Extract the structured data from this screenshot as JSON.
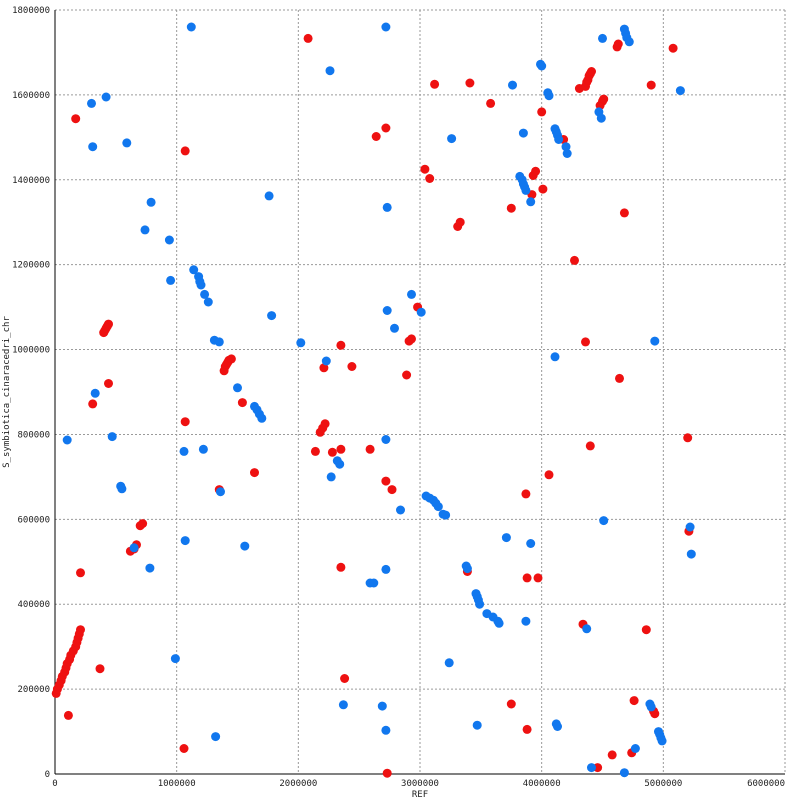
{
  "chart_data": {
    "type": "scatter",
    "title": "",
    "xlabel": "REF",
    "ylabel": "S_symbiotica_cinaracedri_chr",
    "xlim": [
      0,
      6000000
    ],
    "ylim": [
      0,
      1800000
    ],
    "x_ticks": [
      0,
      1000000,
      2000000,
      3000000,
      4000000,
      5000000,
      6000000
    ],
    "y_ticks": [
      0,
      200000,
      400000,
      600000,
      800000,
      1000000,
      1200000,
      1400000,
      1600000,
      1800000
    ],
    "grid": true,
    "legend": "none",
    "series": [
      {
        "color": "#ee1111",
        "points": [
          [
            10000,
            190000
          ],
          [
            20000,
            200000
          ],
          [
            35000,
            210000
          ],
          [
            50000,
            220000
          ],
          [
            60000,
            230000
          ],
          [
            80000,
            240000
          ],
          [
            90000,
            250000
          ],
          [
            100000,
            260000
          ],
          [
            120000,
            270000
          ],
          [
            130000,
            280000
          ],
          [
            150000,
            290000
          ],
          [
            170000,
            300000
          ],
          [
            180000,
            310000
          ],
          [
            190000,
            320000
          ],
          [
            200000,
            330000
          ],
          [
            210000,
            340000
          ],
          [
            110000,
            138000
          ],
          [
            370000,
            248000
          ],
          [
            210000,
            474000
          ],
          [
            310000,
            872000
          ],
          [
            440000,
            920000
          ],
          [
            170000,
            1544000
          ],
          [
            400000,
            1040000
          ],
          [
            410000,
            1045000
          ],
          [
            420000,
            1050000
          ],
          [
            430000,
            1055000
          ],
          [
            440000,
            1060000
          ],
          [
            620000,
            525000
          ],
          [
            650000,
            530000
          ],
          [
            670000,
            540000
          ],
          [
            700000,
            585000
          ],
          [
            720000,
            590000
          ],
          [
            1060000,
            60000
          ],
          [
            1070000,
            830000
          ],
          [
            1070000,
            1468000
          ],
          [
            1350000,
            670000
          ],
          [
            1390000,
            950000
          ],
          [
            1400000,
            960000
          ],
          [
            1410000,
            965000
          ],
          [
            1420000,
            970000
          ],
          [
            1430000,
            975000
          ],
          [
            1450000,
            978000
          ],
          [
            1540000,
            875000
          ],
          [
            1640000,
            710000
          ],
          [
            2080000,
            1733000
          ],
          [
            2140000,
            760000
          ],
          [
            2180000,
            805000
          ],
          [
            2200000,
            815000
          ],
          [
            2220000,
            825000
          ],
          [
            2210000,
            957000
          ],
          [
            2280000,
            758000
          ],
          [
            2350000,
            1010000
          ],
          [
            2350000,
            765000
          ],
          [
            2350000,
            487000
          ],
          [
            2380000,
            225000
          ],
          [
            2440000,
            960000
          ],
          [
            2590000,
            765000
          ],
          [
            2640000,
            1502000
          ],
          [
            2720000,
            1522000
          ],
          [
            2720000,
            690000
          ],
          [
            2770000,
            670000
          ],
          [
            2730000,
            2000
          ],
          [
            2890000,
            940000
          ],
          [
            2910000,
            1020000
          ],
          [
            2930000,
            1025000
          ],
          [
            2980000,
            1100000
          ],
          [
            3040000,
            1425000
          ],
          [
            3080000,
            1403000
          ],
          [
            3120000,
            1625000
          ],
          [
            3310000,
            1290000
          ],
          [
            3330000,
            1300000
          ],
          [
            3410000,
            1628000
          ],
          [
            3390000,
            477000
          ],
          [
            3580000,
            1580000
          ],
          [
            3750000,
            1333000
          ],
          [
            3750000,
            165000
          ],
          [
            3880000,
            105000
          ],
          [
            3870000,
            660000
          ],
          [
            3880000,
            462000
          ],
          [
            3920000,
            1365000
          ],
          [
            3930000,
            1410000
          ],
          [
            3950000,
            1420000
          ],
          [
            3970000,
            462000
          ],
          [
            4000000,
            1560000
          ],
          [
            4010000,
            1378000
          ],
          [
            4060000,
            705000
          ],
          [
            4180000,
            1495000
          ],
          [
            4270000,
            1210000
          ],
          [
            4310000,
            1615000
          ],
          [
            4360000,
            1620000
          ],
          [
            4370000,
            1630000
          ],
          [
            4380000,
            1635000
          ],
          [
            4390000,
            1645000
          ],
          [
            4400000,
            1650000
          ],
          [
            4410000,
            1655000
          ],
          [
            4360000,
            1018000
          ],
          [
            4400000,
            773000
          ],
          [
            4340000,
            353000
          ],
          [
            4460000,
            15000
          ],
          [
            4480000,
            1575000
          ],
          [
            4500000,
            1585000
          ],
          [
            4510000,
            1590000
          ],
          [
            4580000,
            45000
          ],
          [
            4620000,
            1713000
          ],
          [
            4630000,
            1720000
          ],
          [
            4640000,
            932000
          ],
          [
            4680000,
            1322000
          ],
          [
            4740000,
            50000
          ],
          [
            4760000,
            173000
          ],
          [
            4860000,
            340000
          ],
          [
            4920000,
            148000
          ],
          [
            4930000,
            142000
          ],
          [
            4900000,
            1623000
          ],
          [
            5080000,
            1710000
          ],
          [
            5200000,
            792000
          ],
          [
            5210000,
            572000
          ]
        ]
      },
      {
        "color": "#1177ee",
        "points": [
          [
            100000,
            787000
          ],
          [
            300000,
            1580000
          ],
          [
            310000,
            1478000
          ],
          [
            330000,
            897000
          ],
          [
            420000,
            1595000
          ],
          [
            470000,
            795000
          ],
          [
            540000,
            678000
          ],
          [
            550000,
            672000
          ],
          [
            590000,
            1487000
          ],
          [
            650000,
            533000
          ],
          [
            740000,
            1282000
          ],
          [
            780000,
            485000
          ],
          [
            790000,
            1347000
          ],
          [
            940000,
            1258000
          ],
          [
            950000,
            1163000
          ],
          [
            990000,
            272000
          ],
          [
            1060000,
            760000
          ],
          [
            1070000,
            550000
          ],
          [
            1120000,
            1760000
          ],
          [
            1140000,
            1188000
          ],
          [
            1180000,
            1172000
          ],
          [
            1190000,
            1160000
          ],
          [
            1200000,
            1152000
          ],
          [
            1230000,
            1130000
          ],
          [
            1260000,
            1112000
          ],
          [
            1220000,
            765000
          ],
          [
            1310000,
            1022000
          ],
          [
            1320000,
            88000
          ],
          [
            1350000,
            1018000
          ],
          [
            1360000,
            665000
          ],
          [
            1500000,
            910000
          ],
          [
            1560000,
            537000
          ],
          [
            1640000,
            866000
          ],
          [
            1660000,
            858000
          ],
          [
            1680000,
            848000
          ],
          [
            1700000,
            838000
          ],
          [
            1760000,
            1362000
          ],
          [
            1780000,
            1080000
          ],
          [
            2020000,
            1016000
          ],
          [
            2230000,
            973000
          ],
          [
            2260000,
            1657000
          ],
          [
            2270000,
            700000
          ],
          [
            2320000,
            738000
          ],
          [
            2340000,
            730000
          ],
          [
            2370000,
            163000
          ],
          [
            2590000,
            450000
          ],
          [
            2620000,
            450000
          ],
          [
            2690000,
            160000
          ],
          [
            2720000,
            1760000
          ],
          [
            2730000,
            1335000
          ],
          [
            2730000,
            1092000
          ],
          [
            2720000,
            788000
          ],
          [
            2720000,
            482000
          ],
          [
            2720000,
            103000
          ],
          [
            2790000,
            1050000
          ],
          [
            2840000,
            622000
          ],
          [
            2930000,
            1130000
          ],
          [
            3010000,
            1088000
          ],
          [
            3050000,
            655000
          ],
          [
            3080000,
            650000
          ],
          [
            3110000,
            645000
          ],
          [
            3130000,
            638000
          ],
          [
            3150000,
            630000
          ],
          [
            3190000,
            612000
          ],
          [
            3210000,
            610000
          ],
          [
            3260000,
            1497000
          ],
          [
            3240000,
            262000
          ],
          [
            3380000,
            490000
          ],
          [
            3390000,
            484000
          ],
          [
            3460000,
            425000
          ],
          [
            3470000,
            418000
          ],
          [
            3480000,
            410000
          ],
          [
            3490000,
            400000
          ],
          [
            3550000,
            378000
          ],
          [
            3600000,
            370000
          ],
          [
            3640000,
            360000
          ],
          [
            3650000,
            355000
          ],
          [
            3470000,
            115000
          ],
          [
            3710000,
            557000
          ],
          [
            3760000,
            1623000
          ],
          [
            3820000,
            1408000
          ],
          [
            3840000,
            1400000
          ],
          [
            3850000,
            1390000
          ],
          [
            3860000,
            1383000
          ],
          [
            3870000,
            1375000
          ],
          [
            3850000,
            1510000
          ],
          [
            3870000,
            360000
          ],
          [
            3910000,
            1348000
          ],
          [
            3910000,
            543000
          ],
          [
            3990000,
            1672000
          ],
          [
            4000000,
            1668000
          ],
          [
            4050000,
            1605000
          ],
          [
            4060000,
            1598000
          ],
          [
            4110000,
            1520000
          ],
          [
            4120000,
            1513000
          ],
          [
            4130000,
            1505000
          ],
          [
            4140000,
            1495000
          ],
          [
            4200000,
            1478000
          ],
          [
            4210000,
            1462000
          ],
          [
            4110000,
            983000
          ],
          [
            4120000,
            118000
          ],
          [
            4130000,
            112000
          ],
          [
            4370000,
            342000
          ],
          [
            4410000,
            15000
          ],
          [
            4470000,
            1560000
          ],
          [
            4490000,
            1545000
          ],
          [
            4500000,
            1733000
          ],
          [
            4510000,
            597000
          ],
          [
            4680000,
            1755000
          ],
          [
            4690000,
            1745000
          ],
          [
            4700000,
            1735000
          ],
          [
            4720000,
            1725000
          ],
          [
            4680000,
            3000
          ],
          [
            4770000,
            60000
          ],
          [
            4890000,
            165000
          ],
          [
            4900000,
            158000
          ],
          [
            4930000,
            1020000
          ],
          [
            4960000,
            100000
          ],
          [
            4970000,
            93000
          ],
          [
            4980000,
            85000
          ],
          [
            4990000,
            78000
          ],
          [
            5140000,
            1610000
          ],
          [
            5220000,
            582000
          ],
          [
            5230000,
            518000
          ]
        ]
      }
    ]
  }
}
